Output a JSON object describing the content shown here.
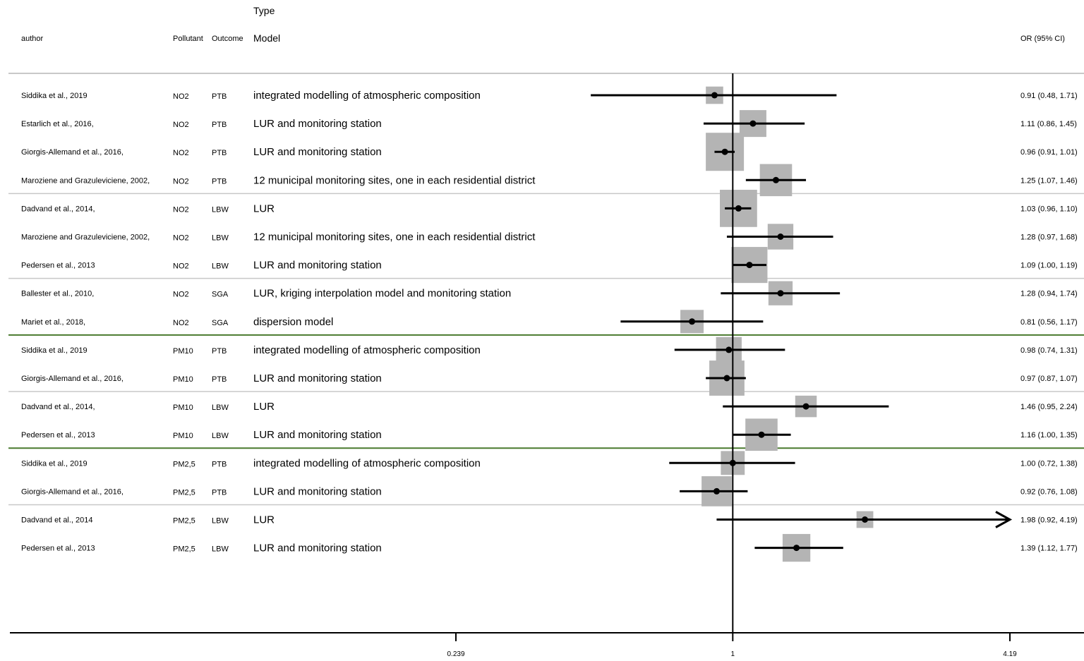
{
  "chart_data": {
    "type": "forest",
    "headers": {
      "author": "author",
      "pollutant": "Pollutant",
      "outcome": "Outcome",
      "type_line1": "Type",
      "type_line2": "Model",
      "or": "OR (95% CI)"
    },
    "x_scale": "log",
    "xlim": [
      0.239,
      4.19
    ],
    "reference_line": 1,
    "ticks": [
      {
        "value": 0.239,
        "label": "0.239"
      },
      {
        "value": 1,
        "label": "1"
      },
      {
        "value": 4.19,
        "label": "4.19"
      }
    ],
    "rows": [
      {
        "author": "Siddika et al., 2019",
        "pollutant": "NO2",
        "outcome": "PTB",
        "model": "integrated modelling of atmospheric composition",
        "or": 0.91,
        "lo": 0.48,
        "hi": 1.71,
        "weight": 0.3,
        "or_text": "0.91 (0.48, 1.71)"
      },
      {
        "author": "Estarlich et al., 2016,",
        "pollutant": "NO2",
        "outcome": "PTB",
        "model": "LUR and monitoring station",
        "or": 1.11,
        "lo": 0.86,
        "hi": 1.45,
        "weight": 0.62,
        "or_text": "1.11 (0.86, 1.45)"
      },
      {
        "author": "Giorgis-Allemand et al., 2016,",
        "pollutant": "NO2",
        "outcome": "PTB",
        "model": "LUR and monitoring station",
        "or": 0.96,
        "lo": 0.91,
        "hi": 1.01,
        "weight": 1.0,
        "or_text": "0.96 (0.91, 1.01)"
      },
      {
        "author": "Maroziene and Grazuleviciene, 2002,",
        "pollutant": "NO2",
        "outcome": "PTB",
        "model": "12 municipal monitoring sites, one in each residential district",
        "or": 1.25,
        "lo": 1.07,
        "hi": 1.46,
        "weight": 0.8,
        "or_text": "1.25 (1.07, 1.46)"
      },
      {
        "author": "Dadvand et al., 2014,",
        "pollutant": "NO2",
        "outcome": "LBW",
        "model": "LUR",
        "or": 1.03,
        "lo": 0.96,
        "hi": 1.1,
        "weight": 0.97,
        "or_text": "1.03 (0.96, 1.10)"
      },
      {
        "author": "Maroziene and Grazuleviciene, 2002,",
        "pollutant": "NO2",
        "outcome": "LBW",
        "model": "12 municipal monitoring sites, one in each residential district",
        "or": 1.28,
        "lo": 0.97,
        "hi": 1.68,
        "weight": 0.58,
        "or_text": "1.28 (0.97, 1.68)"
      },
      {
        "author": "Pedersen et al., 2013",
        "pollutant": "NO2",
        "outcome": "LBW",
        "model": "LUR and monitoring station",
        "or": 1.09,
        "lo": 1.0,
        "hi": 1.19,
        "weight": 0.93,
        "or_text": "1.09 (1.00, 1.19)"
      },
      {
        "author": "Ballester et al., 2010,",
        "pollutant": "NO2",
        "outcome": "SGA",
        "model": "LUR, kriging interpolation model and monitoring station",
        "or": 1.28,
        "lo": 0.94,
        "hi": 1.74,
        "weight": 0.53,
        "or_text": "1.28 (0.94, 1.74)"
      },
      {
        "author": "Mariet et al., 2018,",
        "pollutant": "NO2",
        "outcome": "SGA",
        "model": "dispersion model",
        "or": 0.81,
        "lo": 0.56,
        "hi": 1.17,
        "weight": 0.5,
        "or_text": "0.81 (0.56, 1.17)"
      },
      {
        "author": "Siddika et al., 2019",
        "pollutant": "PM10",
        "outcome": "PTB",
        "model": "integrated modelling of atmospheric composition",
        "or": 0.98,
        "lo": 0.74,
        "hi": 1.31,
        "weight": 0.58,
        "or_text": "0.98 (0.74, 1.31)"
      },
      {
        "author": "Giorgis-Allemand et al., 2016,",
        "pollutant": "PM10",
        "outcome": "PTB",
        "model": "LUR and monitoring station",
        "or": 0.97,
        "lo": 0.87,
        "hi": 1.07,
        "weight": 0.9,
        "or_text": "0.97 (0.87, 1.07)"
      },
      {
        "author": "Dadvand et al., 2014,",
        "pollutant": "PM10",
        "outcome": "LBW",
        "model": "LUR",
        "or": 1.46,
        "lo": 0.95,
        "hi": 2.24,
        "weight": 0.44,
        "or_text": "1.46 (0.95, 2.24)"
      },
      {
        "author": "Pedersen et al., 2013",
        "pollutant": "PM10",
        "outcome": "LBW",
        "model": "LUR and monitoring station",
        "or": 1.16,
        "lo": 1.0,
        "hi": 1.35,
        "weight": 0.8,
        "or_text": "1.16 (1.00, 1.35)"
      },
      {
        "author": "Siddika et al., 2019",
        "pollutant": "PM2,5",
        "outcome": "PTB",
        "model": "integrated modelling of atmospheric composition",
        "or": 1.0,
        "lo": 0.72,
        "hi": 1.38,
        "weight": 0.52,
        "or_text": "1.00 (0.72, 1.38)"
      },
      {
        "author": "Giorgis-Allemand et al., 2016,",
        "pollutant": "PM2,5",
        "outcome": "PTB",
        "model": "LUR and monitoring station",
        "or": 0.92,
        "lo": 0.76,
        "hi": 1.08,
        "weight": 0.73,
        "or_text": "0.92 (0.76, 1.08)"
      },
      {
        "author": "Dadvand et al., 2014",
        "pollutant": "PM2,5",
        "outcome": "LBW",
        "model": "LUR",
        "or": 1.98,
        "lo": 0.92,
        "hi": 4.19,
        "weight": 0.28,
        "or_text": "1.98 (0.92, 4.19)",
        "hi_clipped": true
      },
      {
        "author": "Pedersen et al., 2013",
        "pollutant": "PM2,5",
        "outcome": "LBW",
        "model": "LUR and monitoring station",
        "or": 1.39,
        "lo": 1.12,
        "hi": 1.77,
        "weight": 0.65,
        "or_text": "1.39 (1.12, 1.77)"
      }
    ],
    "separators": [
      {
        "after_row": 3,
        "color": "#c8c8c8"
      },
      {
        "after_row": 6,
        "color": "#c8c8c8"
      },
      {
        "after_row": 8,
        "color": "#4a7a2e"
      },
      {
        "after_row": 10,
        "color": "#c8c8c8"
      },
      {
        "after_row": 12,
        "color": "#4a7a2e"
      },
      {
        "after_row": 14,
        "color": "#c8c8c8"
      }
    ],
    "colors": {
      "box": "#b4b4b4",
      "ci": "#000000",
      "header_rule": "#c8c8c8",
      "group_rule": "#4a7a2e"
    },
    "grid": false,
    "legend": "none"
  }
}
